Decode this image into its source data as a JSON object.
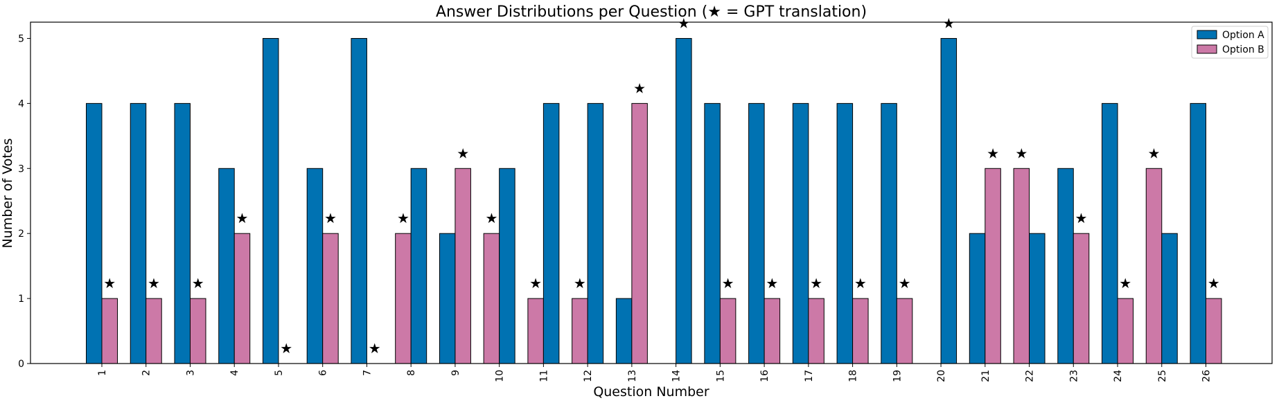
{
  "chart_data": {
    "type": "bar",
    "title": "Answer Distributions per Question (★ = GPT translation)",
    "xlabel": "Question Number",
    "ylabel": "Number of Votes",
    "ylim": [
      0,
      5.25
    ],
    "yticks": [
      0,
      1,
      2,
      3,
      4,
      5
    ],
    "categories": [
      "1",
      "2",
      "3",
      "4",
      "5",
      "6",
      "7",
      "8",
      "9",
      "10",
      "11",
      "12",
      "13",
      "14",
      "15",
      "16",
      "17",
      "18",
      "19",
      "20",
      "21",
      "22",
      "23",
      "24",
      "25",
      "26"
    ],
    "series": [
      {
        "name": "Option A",
        "color": "#0072B2",
        "values": [
          4,
          4,
          4,
          3,
          5,
          3,
          5,
          3,
          2,
          3,
          4,
          4,
          1,
          5,
          4,
          4,
          4,
          4,
          4,
          5,
          2,
          2,
          3,
          4,
          2,
          4
        ]
      },
      {
        "name": "Option B",
        "color": "#CC79A7",
        "values": [
          1,
          1,
          1,
          2,
          0,
          2,
          0,
          2,
          3,
          2,
          1,
          1,
          4,
          0,
          1,
          1,
          1,
          1,
          1,
          0,
          3,
          3,
          2,
          1,
          3,
          1
        ]
      }
    ],
    "bar_order": [
      "A",
      "A",
      "A",
      "A",
      "A",
      "A",
      "A",
      "B",
      "A",
      "B",
      "B",
      "B",
      "A",
      "B",
      "A",
      "A",
      "A",
      "A",
      "A",
      "B",
      "A",
      "B",
      "A",
      "A",
      "B",
      "A"
    ],
    "star_marker": "★",
    "star_on_series": [
      "B",
      "B",
      "B",
      "B",
      "B",
      "B",
      "B",
      "B",
      "B",
      "B",
      "B",
      "B",
      "B",
      "A",
      "B",
      "B",
      "B",
      "B",
      "B",
      "A",
      "B",
      "B",
      "B",
      "B",
      "B",
      "B"
    ],
    "legend_position": "top-right",
    "grid": false
  }
}
